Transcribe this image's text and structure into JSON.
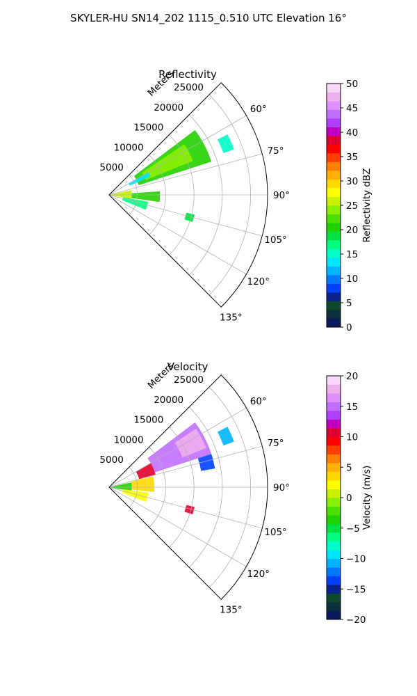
{
  "figure": {
    "suptitle": "SKYLER-HU  SN14_202  1115_0.510 UTC Elevation 16°"
  },
  "chart_data": [
    {
      "type": "heatmap",
      "title": "Reflectivity",
      "projection": "polar-sector",
      "range_label": "Meters",
      "range_ticks": [
        "5000",
        "10000",
        "15000",
        "20000",
        "25000"
      ],
      "range_values": [
        5000,
        10000,
        15000,
        20000,
        25000
      ],
      "range_max": 28000,
      "azimuth_ticks": [
        "60°",
        "75°",
        "90°",
        "105°",
        "120°",
        "135°"
      ],
      "azimuth_values": [
        60,
        75,
        90,
        105,
        120,
        135
      ],
      "azimuth_range": [
        45,
        135
      ],
      "colorbar": {
        "label": "Reflectivity dBZ",
        "vmin": 0,
        "vmax": 50,
        "ticks": [
          "0",
          "5",
          "10",
          "15",
          "20",
          "25",
          "30",
          "35",
          "40",
          "45",
          "50"
        ],
        "tick_values": [
          0,
          5,
          10,
          15,
          20,
          25,
          30,
          35,
          40,
          45,
          50
        ],
        "colors": [
          "#081a5c",
          "#0a2f3c",
          "#0b4a2a",
          "#08208c",
          "#0040ff",
          "#0078ff",
          "#00b4ff",
          "#00e6ff",
          "#00ffc8",
          "#00ff80",
          "#00e040",
          "#22d000",
          "#50e000",
          "#8cf000",
          "#c8f000",
          "#ffff00",
          "#ffd800",
          "#ffb000",
          "#ff8000",
          "#ff4000",
          "#ff0000",
          "#e00030",
          "#c000c0",
          "#b040ff",
          "#c070ff",
          "#e090ff",
          "#f0b0f0",
          "#f8d8f8"
        ]
      },
      "echo_regions": [
        {
          "az": [
            53,
            72
          ],
          "range": [
            5500,
            19000
          ],
          "value": 21
        },
        {
          "az": [
            56,
            68
          ],
          "range": [
            7000,
            16000
          ],
          "value": 24
        },
        {
          "az": [
            60,
            66
          ],
          "range": [
            4000,
            8000
          ],
          "value": 13
        },
        {
          "az": [
            63,
            70
          ],
          "range": [
            21500,
            23500
          ],
          "value": 16
        },
        {
          "az": [
            78,
            100
          ],
          "range": [
            0,
            4000
          ],
          "value": 26
        },
        {
          "az": [
            86,
            98
          ],
          "range": [
            4000,
            9000
          ],
          "value": 20
        },
        {
          "az": [
            100,
            112
          ],
          "range": [
            2500,
            7000
          ],
          "value": 17
        },
        {
          "az": [
            103,
            108
          ],
          "range": [
            14000,
            15500
          ],
          "value": 19
        }
      ]
    },
    {
      "type": "heatmap",
      "title": "Velocity",
      "projection": "polar-sector",
      "range_label": "Meters",
      "range_ticks": [
        "5000",
        "10000",
        "15000",
        "20000",
        "25000"
      ],
      "range_values": [
        5000,
        10000,
        15000,
        20000,
        25000
      ],
      "range_max": 28000,
      "azimuth_ticks": [
        "60°",
        "75°",
        "90°",
        "105°",
        "120°",
        "135°"
      ],
      "azimuth_values": [
        60,
        75,
        90,
        105,
        120,
        135
      ],
      "azimuth_range": [
        45,
        135
      ],
      "colorbar": {
        "label": "Velocity (m/s)",
        "vmin": -20,
        "vmax": 20,
        "ticks": [
          "−20",
          "−15",
          "−10",
          "−5",
          "0",
          "5",
          "10",
          "15",
          "20"
        ],
        "tick_values": [
          -20,
          -15,
          -10,
          -5,
          0,
          5,
          10,
          15,
          20
        ],
        "colors": [
          "#081a5c",
          "#0a2f3c",
          "#0b4a2a",
          "#08208c",
          "#0040ff",
          "#0078ff",
          "#00b4ff",
          "#00e6ff",
          "#00ffc8",
          "#00ff80",
          "#00e040",
          "#22d000",
          "#50e000",
          "#8cf000",
          "#c8f000",
          "#ffff00",
          "#ffd800",
          "#ffb000",
          "#ff8000",
          "#ff4000",
          "#ff0000",
          "#e00030",
          "#c000c0",
          "#b040ff",
          "#c070ff",
          "#e090ff",
          "#f0b0f0",
          "#f8d8f8"
        ]
      },
      "echo_regions": [
        {
          "az": [
            53,
            72
          ],
          "range": [
            8500,
            19000
          ],
          "value": 15
        },
        {
          "az": [
            56,
            68
          ],
          "range": [
            14000,
            18500
          ],
          "value": 18
        },
        {
          "az": [
            63,
            70
          ],
          "range": [
            21500,
            23500
          ],
          "value": -11
        },
        {
          "az": [
            72,
            80
          ],
          "range": [
            16500,
            19000
          ],
          "value": -14
        },
        {
          "az": [
            60,
            75
          ],
          "range": [
            5500,
            8500
          ],
          "value": 10
        },
        {
          "az": [
            76,
            96
          ],
          "range": [
            4000,
            8000
          ],
          "value": 4
        },
        {
          "az": [
            78,
            100
          ],
          "range": [
            0,
            4000
          ],
          "value": -3
        },
        {
          "az": [
            98,
            112
          ],
          "range": [
            2500,
            7000
          ],
          "value": 2
        },
        {
          "az": [
            103,
            108
          ],
          "range": [
            14000,
            15500
          ],
          "value": 11
        }
      ]
    }
  ]
}
